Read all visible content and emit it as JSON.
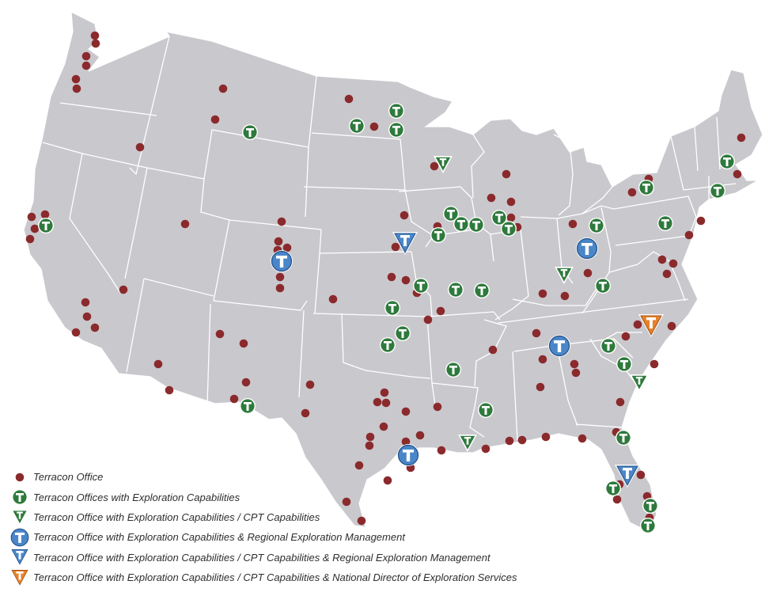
{
  "map": {
    "land_color": "#c9c8cd",
    "border_color": "#ffffff",
    "office_color": "#8b2a2c",
    "exploration_color": "#2e7a3c",
    "regional_color": "#4a86c8",
    "national_color": "#e8822a"
  },
  "legend": [
    {
      "symbol": "office",
      "label": "Terracon Office"
    },
    {
      "symbol": "exploration",
      "label": "Terracon Offices with Exploration Capabilities"
    },
    {
      "symbol": "cpt",
      "label": "Terracon Office with Exploration Capabilities / CPT Capabilities"
    },
    {
      "symbol": "regional",
      "label": "Terracon Office with Exploration Capabilities & Regional Exploration Management"
    },
    {
      "symbol": "cpt-regional",
      "label": "Terracon Office with Exploration Capabilities / CPT Capabilities & Regional Exploration Management"
    },
    {
      "symbol": "cpt-national",
      "label": "Terracon Office with Exploration Capabilities / CPT Capabilities & National Director of Exploration Services"
    }
  ]
}
